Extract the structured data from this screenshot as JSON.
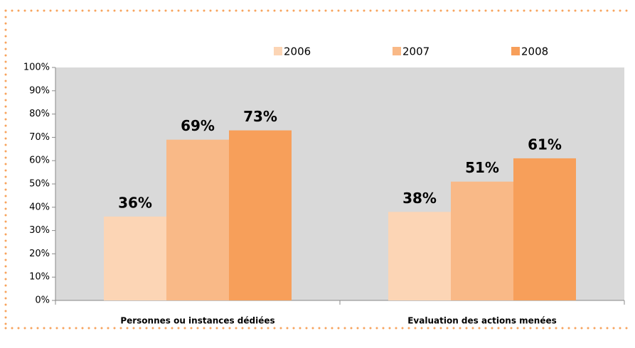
{
  "chart_data": {
    "type": "bar",
    "categories": [
      "Personnes ou instances dédiées",
      "Evaluation des actions menées"
    ],
    "series": [
      {
        "name": "2006",
        "color": "#fcd5b5",
        "values": [
          36,
          38
        ],
        "value_labels": [
          "36%",
          "38%"
        ]
      },
      {
        "name": "2007",
        "color": "#f9b987",
        "values": [
          69,
          51
        ],
        "value_labels": [
          "69%",
          "51%"
        ]
      },
      {
        "name": "2008",
        "color": "#f79f5a",
        "values": [
          73,
          61
        ],
        "value_labels": [
          "73%",
          "61%"
        ]
      }
    ],
    "ylim": [
      0,
      100
    ],
    "yticks": [
      {
        "value": 0,
        "label": "0%"
      },
      {
        "value": 10,
        "label": "10%"
      },
      {
        "value": 20,
        "label": "20%"
      },
      {
        "value": 30,
        "label": "30%"
      },
      {
        "value": 40,
        "label": "40%"
      },
      {
        "value": 50,
        "label": "50%"
      },
      {
        "value": 60,
        "label": "60%"
      },
      {
        "value": 70,
        "label": "70%"
      },
      {
        "value": 80,
        "label": "80%"
      },
      {
        "value": 90,
        "label": "90%"
      },
      {
        "value": 100,
        "label": "100%"
      }
    ],
    "legend": "top",
    "plot_background": "#d9d9d9"
  }
}
